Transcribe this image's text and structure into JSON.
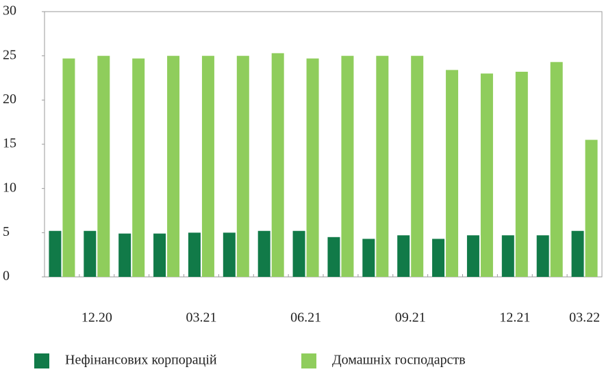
{
  "chart_data": {
    "type": "bar",
    "categories": [
      null,
      "12.20",
      null,
      null,
      "03.21",
      null,
      null,
      "06.21",
      null,
      null,
      "09.21",
      null,
      null,
      "12.21",
      null,
      "03.22"
    ],
    "series": [
      {
        "name": "Нефінансових корпорацій",
        "color": "#117a48",
        "values": [
          5.2,
          5.2,
          4.9,
          4.9,
          5.0,
          5.0,
          5.2,
          5.2,
          4.5,
          4.3,
          4.7,
          4.3,
          4.7,
          4.7,
          4.7,
          5.2
        ]
      },
      {
        "name": "Домашніх  господарств",
        "color": "#8fcd5c",
        "values": [
          24.7,
          25.0,
          24.7,
          25.0,
          25.0,
          25.0,
          25.3,
          24.7,
          25.0,
          25.0,
          25.0,
          23.4,
          23.0,
          23.2,
          24.3,
          15.5
        ]
      }
    ],
    "ylim": [
      0,
      30
    ],
    "yticks": [
      0,
      5,
      10,
      15,
      20,
      25,
      30
    ],
    "grid": false
  }
}
